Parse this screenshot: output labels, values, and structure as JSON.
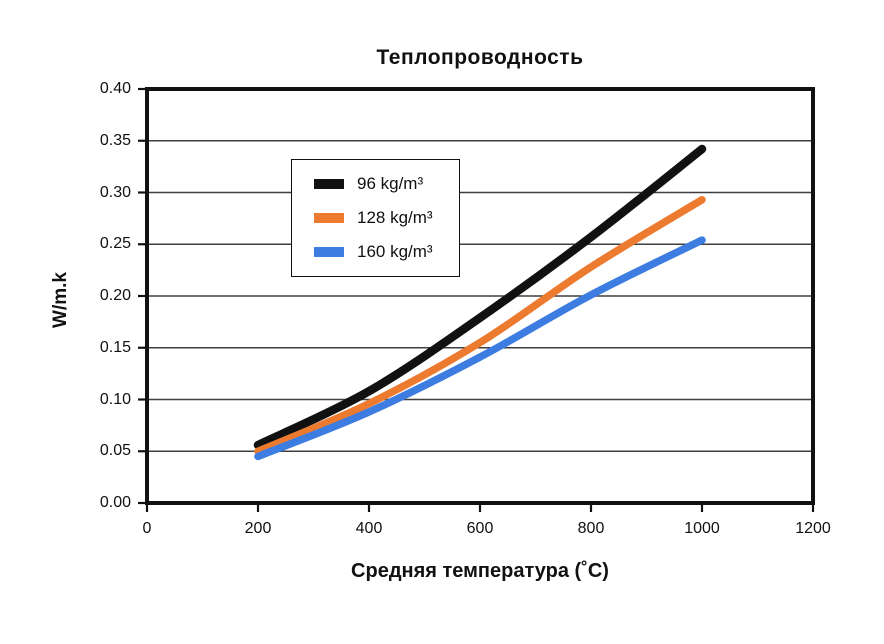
{
  "chart_data": {
    "type": "line",
    "title": "Теплопроводность",
    "xlabel": "Средняя температура (˚C)",
    "ylabel": "W/m.k",
    "xlim": [
      0,
      1200
    ],
    "ylim": [
      0.0,
      0.4
    ],
    "x_ticks": [
      "0",
      "200",
      "400",
      "600",
      "800",
      "1000",
      "1200"
    ],
    "x_tick_values": [
      0,
      200,
      400,
      600,
      800,
      1000,
      1200
    ],
    "y_ticks": [
      "0.00",
      "0.05",
      "0.10",
      "0.15",
      "0.20",
      "0.25",
      "0.30",
      "0.35",
      "0.40"
    ],
    "y_tick_values": [
      0.0,
      0.05,
      0.1,
      0.15,
      0.2,
      0.25,
      0.3,
      0.35,
      0.4
    ],
    "grid": "horizontal-only",
    "legend_position": "upper-left-inside",
    "x": [
      200,
      400,
      600,
      800,
      1000
    ],
    "series": [
      {
        "name": "96 kg/m³",
        "color": "#111111",
        "values": [
          0.056,
          0.108,
          0.179,
          0.257,
          0.342
        ]
      },
      {
        "name": "128 kg/m³",
        "color": "#ED7B2F",
        "values": [
          0.05,
          0.096,
          0.155,
          0.228,
          0.293
        ]
      },
      {
        "name": "160 kg/m³",
        "color": "#3D7CE0",
        "values": [
          0.045,
          0.088,
          0.141,
          0.201,
          0.254
        ]
      }
    ],
    "axis_color": "#111111",
    "gridline_color": "#3f3f3f"
  }
}
